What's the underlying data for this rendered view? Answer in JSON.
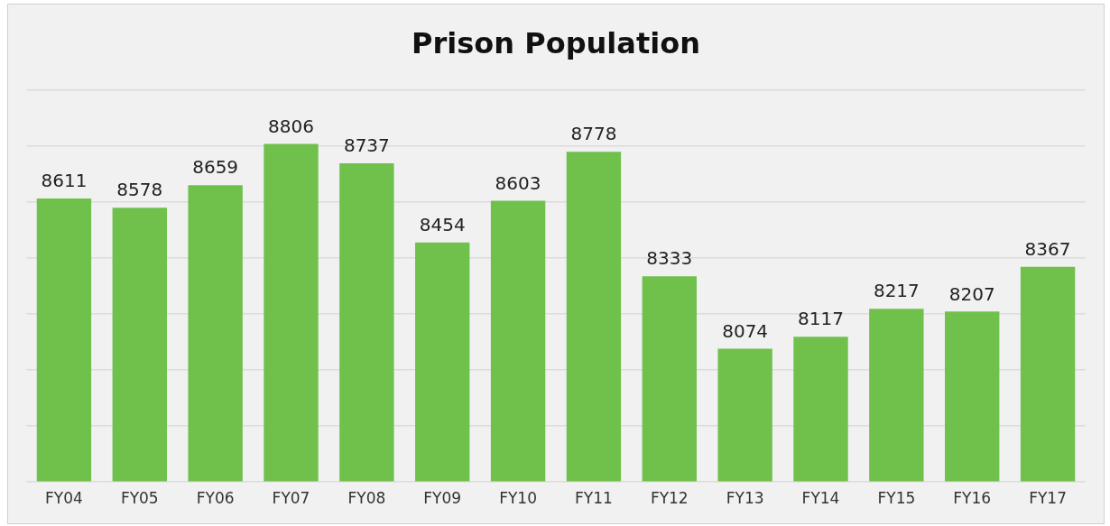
{
  "chart_data": {
    "type": "bar",
    "title": "Prison Population",
    "categories": [
      "FY04",
      "FY05",
      "FY06",
      "FY07",
      "FY08",
      "FY09",
      "FY10",
      "FY11",
      "FY12",
      "FY13",
      "FY14",
      "FY15",
      "FY16",
      "FY17"
    ],
    "values": [
      8611,
      8578,
      8659,
      8806,
      8737,
      8454,
      8603,
      8778,
      8333,
      8074,
      8117,
      8217,
      8207,
      8367
    ],
    "color": "#70c04c",
    "ylim": [
      7600,
      9000
    ],
    "yticks": [
      {
        "value": 7600,
        "label": null
      },
      {
        "value": 7800,
        "label": null
      },
      {
        "value": 8000,
        "label": null
      },
      {
        "value": 8200,
        "label": null
      },
      {
        "value": 8400,
        "label": null
      },
      {
        "value": 8600,
        "label": null
      },
      {
        "value": 8800,
        "label": null
      },
      {
        "value": 9000,
        "label": null
      }
    ],
    "tick_labels": "x",
    "grid": "y",
    "data_labels": true,
    "legend": false
  }
}
